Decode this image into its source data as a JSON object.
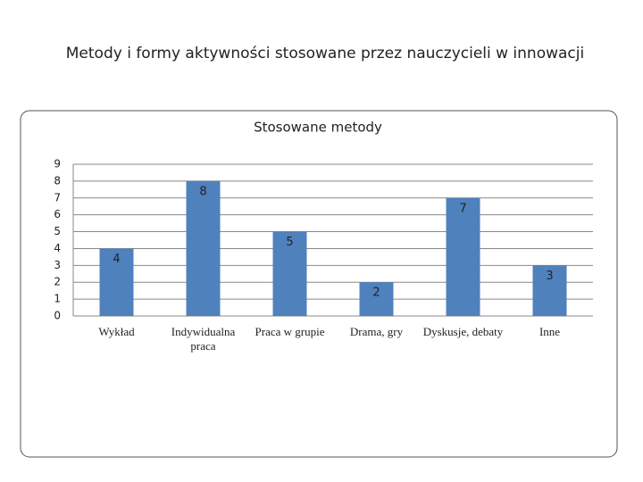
{
  "header": {
    "title": "Metody i formy aktywności stosowane przez nauczycieli w innowacji"
  },
  "chart_data": {
    "type": "bar",
    "title": "Stosowane metody",
    "categories": [
      "Wykład",
      "Indywidualna praca",
      "Praca w grupie",
      "Drama, gry",
      "Dyskusje, debaty",
      "Inne"
    ],
    "values": [
      4,
      8,
      5,
      2,
      7,
      3
    ],
    "color": "#4f81bd",
    "ylim": [
      0,
      9
    ],
    "yticks": [
      0,
      1,
      2,
      3,
      4,
      5,
      6,
      7,
      8,
      9
    ],
    "grid": true
  }
}
